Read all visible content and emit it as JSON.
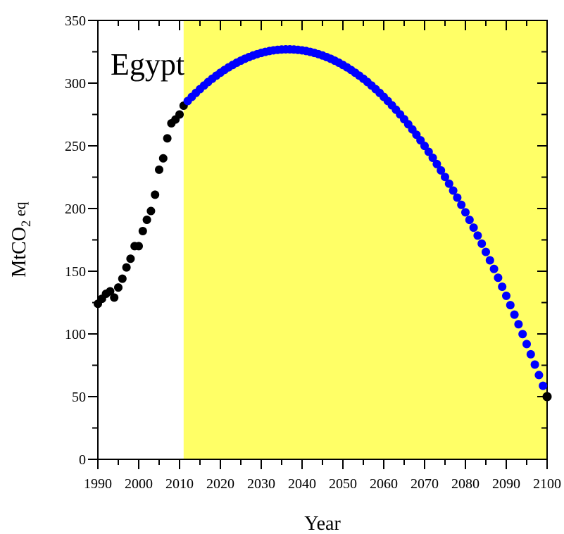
{
  "chart_data": {
    "type": "scatter",
    "title": "Egypt",
    "xlabel": "Year",
    "ylabel_main": "MtCO",
    "ylabel_sub": "2",
    "ylabel_suffix": " eq",
    "xlim": [
      1990,
      2100
    ],
    "ylim": [
      0,
      350
    ],
    "x_ticks": [
      1990,
      2000,
      2010,
      2020,
      2030,
      2040,
      2050,
      2060,
      2070,
      2080,
      2090,
      2100
    ],
    "y_ticks": [
      0,
      50,
      100,
      150,
      200,
      250,
      300,
      350
    ],
    "x_minor_step": 5,
    "y_minor_step": 25,
    "grid": false,
    "shaded_region": {
      "x_start": 2011,
      "x_end": 2100,
      "color": "#ffff66"
    },
    "series": [
      {
        "color": "#000000",
        "points": [
          [
            1990,
            124
          ],
          [
            1991,
            128
          ],
          [
            1992,
            132
          ],
          [
            1993,
            134
          ],
          [
            1994,
            129
          ],
          [
            1995,
            137
          ],
          [
            1996,
            144
          ],
          [
            1997,
            153
          ],
          [
            1998,
            160
          ],
          [
            1999,
            170
          ],
          [
            2000,
            170
          ],
          [
            2001,
            182
          ],
          [
            2002,
            191
          ],
          [
            2003,
            198
          ],
          [
            2004,
            211
          ],
          [
            2005,
            231
          ],
          [
            2006,
            240
          ],
          [
            2007,
            256
          ],
          [
            2008,
            268
          ],
          [
            2009,
            271
          ],
          [
            2010,
            275
          ],
          [
            2011,
            282
          ]
        ]
      },
      {
        "color": "#0000ff",
        "start_year": 2012,
        "end_year": 2100,
        "peak_year": 2036.5,
        "peak_value": 327,
        "end_value": 50
      }
    ]
  }
}
